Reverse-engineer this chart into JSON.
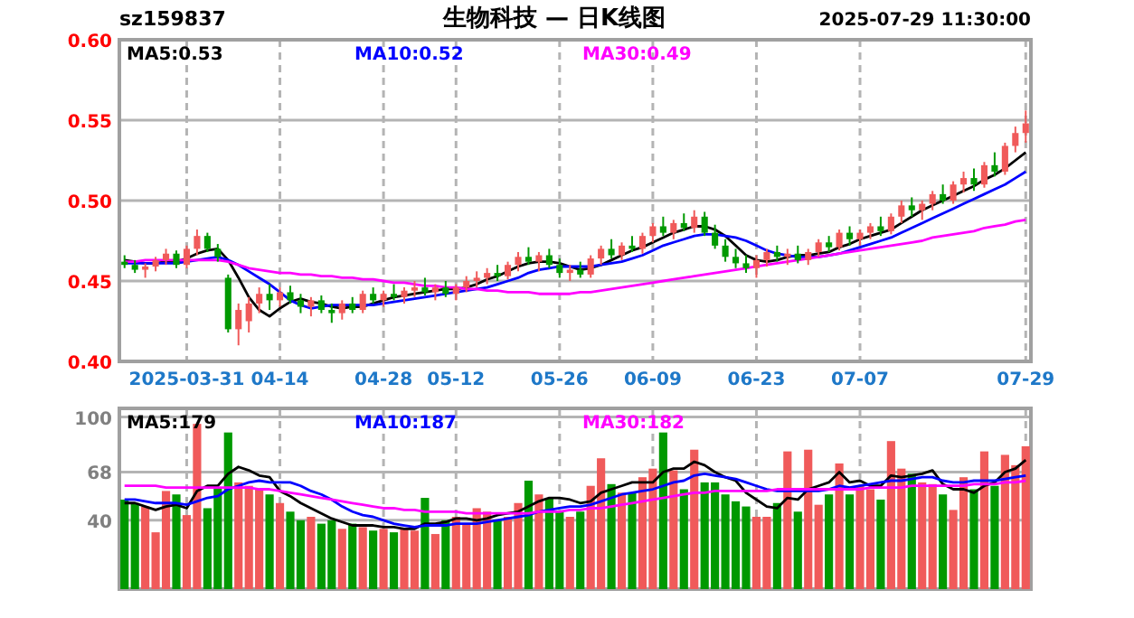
{
  "chart_data": [
    {
      "type": "candlestick",
      "title": "生物科技 — 日K线图",
      "subtitle": "sz159837",
      "annotations": [
        "2025-07-29 11:30:00"
      ],
      "categories": [
        null,
        null,
        null,
        null,
        null,
        null,
        "2025-03-31",
        null,
        null,
        null,
        null,
        null,
        null,
        null,
        null,
        "04-14",
        null,
        null,
        null,
        null,
        null,
        null,
        null,
        null,
        null,
        "04-28",
        null,
        null,
        null,
        null,
        null,
        null,
        "05-12",
        null,
        null,
        null,
        null,
        null,
        null,
        null,
        null,
        null,
        "05-26",
        null,
        null,
        null,
        null,
        null,
        null,
        null,
        null,
        "06-09",
        null,
        null,
        null,
        null,
        null,
        null,
        null,
        null,
        null,
        "06-23",
        null,
        null,
        null,
        null,
        null,
        null,
        null,
        null,
        null,
        "07-07",
        null,
        null,
        null,
        null,
        null,
        null,
        null,
        null,
        null,
        null,
        null,
        null,
        null,
        null,
        null,
        "07-29"
      ],
      "ohlc": [
        [
          0.462,
          0.466,
          0.458,
          0.46
        ],
        [
          0.46,
          0.463,
          0.455,
          0.457
        ],
        [
          0.457,
          0.461,
          0.452,
          0.459
        ],
        [
          0.459,
          0.465,
          0.456,
          0.463
        ],
        [
          0.463,
          0.47,
          0.46,
          0.467
        ],
        [
          0.467,
          0.469,
          0.458,
          0.46
        ],
        [
          0.46,
          0.472,
          0.458,
          0.47
        ],
        [
          0.47,
          0.482,
          0.466,
          0.478
        ],
        [
          0.478,
          0.48,
          0.468,
          0.47
        ],
        [
          0.47,
          0.473,
          0.462,
          0.465
        ],
        [
          0.452,
          0.454,
          0.418,
          0.42
        ],
        [
          0.42,
          0.436,
          0.41,
          0.432
        ],
        [
          0.425,
          0.44,
          0.418,
          0.436
        ],
        [
          0.436,
          0.446,
          0.43,
          0.442
        ],
        [
          0.442,
          0.448,
          0.432,
          0.438
        ],
        [
          0.438,
          0.446,
          0.434,
          0.443
        ],
        [
          0.443,
          0.447,
          0.436,
          0.438
        ],
        [
          0.438,
          0.442,
          0.43,
          0.434
        ],
        [
          0.434,
          0.44,
          0.428,
          0.438
        ],
        [
          0.438,
          0.441,
          0.43,
          0.432
        ],
        [
          0.432,
          0.436,
          0.424,
          0.43
        ],
        [
          0.43,
          0.438,
          0.426,
          0.436
        ],
        [
          0.436,
          0.44,
          0.43,
          0.432
        ],
        [
          0.432,
          0.444,
          0.43,
          0.442
        ],
        [
          0.442,
          0.446,
          0.436,
          0.438
        ],
        [
          0.438,
          0.444,
          0.434,
          0.442
        ],
        [
          0.442,
          0.448,
          0.438,
          0.44
        ],
        [
          0.44,
          0.446,
          0.436,
          0.444
        ],
        [
          0.444,
          0.45,
          0.44,
          0.446
        ],
        [
          0.446,
          0.452,
          0.441,
          0.443
        ],
        [
          0.443,
          0.448,
          0.438,
          0.446
        ],
        [
          0.446,
          0.45,
          0.44,
          0.442
        ],
        [
          0.442,
          0.448,
          0.438,
          0.446
        ],
        [
          0.446,
          0.453,
          0.443,
          0.45
        ],
        [
          0.45,
          0.456,
          0.446,
          0.452
        ],
        [
          0.452,
          0.458,
          0.448,
          0.455
        ],
        [
          0.455,
          0.46,
          0.45,
          0.453
        ],
        [
          0.453,
          0.462,
          0.451,
          0.46
        ],
        [
          0.46,
          0.468,
          0.456,
          0.465
        ],
        [
          0.465,
          0.471,
          0.46,
          0.462
        ],
        [
          0.462,
          0.468,
          0.456,
          0.466
        ],
        [
          0.466,
          0.47,
          0.458,
          0.46
        ],
        [
          0.46,
          0.464,
          0.452,
          0.455
        ],
        [
          0.455,
          0.46,
          0.45,
          0.457
        ],
        [
          0.457,
          0.462,
          0.452,
          0.454
        ],
        [
          0.454,
          0.466,
          0.452,
          0.464
        ],
        [
          0.464,
          0.472,
          0.46,
          0.47
        ],
        [
          0.47,
          0.476,
          0.464,
          0.466
        ],
        [
          0.466,
          0.474,
          0.463,
          0.472
        ],
        [
          0.472,
          0.478,
          0.468,
          0.47
        ],
        [
          0.47,
          0.48,
          0.467,
          0.478
        ],
        [
          0.478,
          0.486,
          0.474,
          0.484
        ],
        [
          0.484,
          0.49,
          0.478,
          0.48
        ],
        [
          0.48,
          0.488,
          0.476,
          0.486
        ],
        [
          0.486,
          0.492,
          0.481,
          0.483
        ],
        [
          0.483,
          0.494,
          0.48,
          0.49
        ],
        [
          0.49,
          0.493,
          0.478,
          0.48
        ],
        [
          0.48,
          0.485,
          0.47,
          0.472
        ],
        [
          0.472,
          0.476,
          0.462,
          0.465
        ],
        [
          0.465,
          0.47,
          0.458,
          0.461
        ],
        [
          0.461,
          0.466,
          0.455,
          0.458
        ],
        [
          0.458,
          0.466,
          0.452,
          0.463
        ],
        [
          0.463,
          0.47,
          0.459,
          0.468
        ],
        [
          0.468,
          0.472,
          0.462,
          0.465
        ],
        [
          0.465,
          0.47,
          0.46,
          0.467
        ],
        [
          0.467,
          0.472,
          0.461,
          0.463
        ],
        [
          0.463,
          0.47,
          0.46,
          0.468
        ],
        [
          0.468,
          0.476,
          0.465,
          0.474
        ],
        [
          0.474,
          0.478,
          0.468,
          0.471
        ],
        [
          0.471,
          0.482,
          0.469,
          0.48
        ],
        [
          0.48,
          0.484,
          0.472,
          0.476
        ],
        [
          0.476,
          0.482,
          0.472,
          0.48
        ],
        [
          0.48,
          0.486,
          0.476,
          0.484
        ],
        [
          0.484,
          0.49,
          0.478,
          0.481
        ],
        [
          0.481,
          0.492,
          0.479,
          0.49
        ],
        [
          0.49,
          0.5,
          0.486,
          0.497
        ],
        [
          0.497,
          0.502,
          0.49,
          0.494
        ],
        [
          0.494,
          0.5,
          0.488,
          0.498
        ],
        [
          0.498,
          0.506,
          0.494,
          0.504
        ],
        [
          0.504,
          0.51,
          0.498,
          0.5
        ],
        [
          0.5,
          0.512,
          0.498,
          0.51
        ],
        [
          0.51,
          0.518,
          0.505,
          0.514
        ],
        [
          0.514,
          0.52,
          0.506,
          0.51
        ],
        [
          0.51,
          0.524,
          0.508,
          0.522
        ],
        [
          0.522,
          0.53,
          0.515,
          0.518
        ],
        [
          0.518,
          0.536,
          0.516,
          0.534
        ],
        [
          0.534,
          0.546,
          0.53,
          0.542
        ],
        [
          0.542,
          0.556,
          0.536,
          0.548
        ]
      ],
      "colors": [
        "#009900",
        "#009900",
        "#f05a5a",
        "#f05a5a",
        "#f05a5a",
        "#009900",
        "#f05a5a",
        "#f05a5a",
        "#009900",
        "#009900",
        "#009900",
        "#f05a5a",
        "#f05a5a",
        "#f05a5a",
        "#009900",
        "#f05a5a",
        "#009900",
        "#009900",
        "#f05a5a",
        "#009900",
        "#009900",
        "#f05a5a",
        "#009900",
        "#f05a5a",
        "#009900",
        "#f05a5a",
        "#009900",
        "#f05a5a",
        "#f05a5a",
        "#009900",
        "#f05a5a",
        "#009900",
        "#f05a5a",
        "#f05a5a",
        "#f05a5a",
        "#f05a5a",
        "#009900",
        "#f05a5a",
        "#f05a5a",
        "#009900",
        "#f05a5a",
        "#009900",
        "#009900",
        "#f05a5a",
        "#009900",
        "#f05a5a",
        "#f05a5a",
        "#009900",
        "#f05a5a",
        "#009900",
        "#f05a5a",
        "#f05a5a",
        "#009900",
        "#f05a5a",
        "#009900",
        "#f05a5a",
        "#009900",
        "#009900",
        "#009900",
        "#009900",
        "#009900",
        "#f05a5a",
        "#f05a5a",
        "#009900",
        "#f05a5a",
        "#009900",
        "#f05a5a",
        "#f05a5a",
        "#009900",
        "#f05a5a",
        "#009900",
        "#f05a5a",
        "#f05a5a",
        "#009900",
        "#f05a5a",
        "#f05a5a",
        "#009900",
        "#f05a5a",
        "#f05a5a",
        "#009900",
        "#f05a5a",
        "#f05a5a",
        "#009900",
        "#f05a5a",
        "#009900",
        "#f05a5a",
        "#f05a5a",
        "#f05a5a"
      ],
      "series": [
        {
          "type": "line",
          "name": "MA5:0.53",
          "color": "#000000",
          "values": [
            0.463,
            0.462,
            0.461,
            0.461,
            0.462,
            0.462,
            0.464,
            0.467,
            0.469,
            0.47,
            0.463,
            0.452,
            0.44,
            0.432,
            0.428,
            0.433,
            0.437,
            0.439,
            0.437,
            0.436,
            0.434,
            0.433,
            0.434,
            0.434,
            0.436,
            0.438,
            0.44,
            0.441,
            0.442,
            0.443,
            0.444,
            0.445,
            0.445,
            0.446,
            0.448,
            0.451,
            0.453,
            0.456,
            0.459,
            0.461,
            0.462,
            0.462,
            0.461,
            0.459,
            0.457,
            0.458,
            0.46,
            0.463,
            0.466,
            0.469,
            0.471,
            0.474,
            0.477,
            0.48,
            0.482,
            0.484,
            0.484,
            0.482,
            0.478,
            0.472,
            0.466,
            0.463,
            0.462,
            0.463,
            0.465,
            0.466,
            0.466,
            0.467,
            0.468,
            0.471,
            0.473,
            0.476,
            0.478,
            0.48,
            0.482,
            0.486,
            0.49,
            0.494,
            0.497,
            0.5,
            0.503,
            0.506,
            0.509,
            0.513,
            0.516,
            0.52,
            0.525,
            0.53
          ]
        },
        {
          "type": "line",
          "name": "MA10:0.52",
          "color": "#0000ff",
          "values": [
            0.461,
            0.461,
            0.461,
            0.461,
            0.461,
            0.461,
            0.462,
            0.463,
            0.464,
            0.465,
            0.463,
            0.46,
            0.456,
            0.452,
            0.448,
            0.443,
            0.438,
            0.435,
            0.433,
            0.434,
            0.435,
            0.435,
            0.435,
            0.435,
            0.435,
            0.436,
            0.437,
            0.438,
            0.439,
            0.44,
            0.441,
            0.442,
            0.443,
            0.444,
            0.445,
            0.446,
            0.448,
            0.45,
            0.452,
            0.455,
            0.457,
            0.458,
            0.459,
            0.459,
            0.459,
            0.459,
            0.46,
            0.461,
            0.462,
            0.464,
            0.466,
            0.469,
            0.472,
            0.474,
            0.476,
            0.478,
            0.479,
            0.479,
            0.478,
            0.477,
            0.475,
            0.472,
            0.469,
            0.467,
            0.466,
            0.465,
            0.465,
            0.465,
            0.466,
            0.467,
            0.469,
            0.471,
            0.473,
            0.475,
            0.477,
            0.48,
            0.483,
            0.486,
            0.489,
            0.492,
            0.495,
            0.498,
            0.501,
            0.504,
            0.507,
            0.51,
            0.514,
            0.518
          ]
        },
        {
          "type": "line",
          "name": "MA30:0.49",
          "color": "#ff00ff",
          "values": [
            0.462,
            0.462,
            0.463,
            0.463,
            0.463,
            0.463,
            0.463,
            0.463,
            0.463,
            0.463,
            0.462,
            0.46,
            0.458,
            0.457,
            0.456,
            0.455,
            0.455,
            0.454,
            0.454,
            0.453,
            0.453,
            0.452,
            0.452,
            0.451,
            0.451,
            0.45,
            0.449,
            0.449,
            0.448,
            0.447,
            0.447,
            0.446,
            0.446,
            0.445,
            0.445,
            0.444,
            0.444,
            0.443,
            0.443,
            0.443,
            0.442,
            0.442,
            0.442,
            0.442,
            0.443,
            0.443,
            0.444,
            0.445,
            0.446,
            0.447,
            0.448,
            0.449,
            0.45,
            0.451,
            0.452,
            0.453,
            0.454,
            0.455,
            0.456,
            0.457,
            0.458,
            0.459,
            0.46,
            0.461,
            0.462,
            0.463,
            0.464,
            0.465,
            0.466,
            0.467,
            0.468,
            0.469,
            0.47,
            0.471,
            0.472,
            0.473,
            0.474,
            0.475,
            0.477,
            0.478,
            0.479,
            0.48,
            0.481,
            0.483,
            0.484,
            0.485,
            0.487,
            0.488
          ]
        }
      ],
      "ylim": [
        0.4,
        0.6
      ],
      "yticks": [
        {
          "value": 0.6,
          "label": "0.60"
        },
        {
          "value": 0.55,
          "label": "0.55"
        },
        {
          "value": 0.5,
          "label": "0.50"
        },
        {
          "value": 0.45,
          "label": "0.45"
        },
        {
          "value": 0.4,
          "label": "0.40"
        }
      ],
      "grid": true
    },
    {
      "type": "bar",
      "tick_labels": "y",
      "categories": [
        null,
        null,
        null,
        null,
        null,
        null,
        null,
        null,
        null,
        null,
        null,
        null,
        null,
        null,
        null,
        null,
        null,
        null,
        null,
        null,
        null,
        null,
        null,
        null,
        null,
        null,
        null,
        null,
        null,
        null,
        null,
        null,
        null,
        null,
        null,
        null,
        null,
        null,
        null,
        null,
        null,
        null,
        null,
        null,
        null,
        null,
        null,
        null,
        null,
        null,
        null,
        null,
        null,
        null,
        null,
        null,
        null,
        null,
        null,
        null,
        null,
        null,
        null,
        null,
        null,
        null,
        null,
        null,
        null,
        null,
        null,
        null,
        null,
        null,
        null,
        null,
        null,
        null,
        null,
        null,
        null,
        null,
        null,
        null,
        null,
        null,
        null,
        null
      ],
      "series": [
        {
          "type": "bar",
          "values": [
            52,
            50,
            48,
            33,
            57,
            55,
            43,
            96,
            47,
            59,
            91,
            62,
            60,
            58,
            55,
            50,
            45,
            40,
            42,
            38,
            40,
            35,
            38,
            36,
            34,
            35,
            33,
            35,
            34,
            53,
            32,
            40,
            42,
            38,
            47,
            45,
            40,
            42,
            50,
            63,
            55,
            53,
            45,
            42,
            45,
            60,
            76,
            61,
            56,
            56,
            65,
            70,
            91,
            69,
            58,
            81,
            62,
            62,
            55,
            51,
            48,
            42,
            42,
            50,
            80,
            45,
            81,
            49,
            55,
            73,
            55,
            60,
            58,
            52,
            86,
            70,
            67,
            62,
            61,
            55,
            46,
            65,
            58,
            80,
            60,
            78,
            72,
            83
          ],
          "colors": [
            "#009900",
            "#009900",
            "#f05a5a",
            "#f05a5a",
            "#f05a5a",
            "#009900",
            "#f05a5a",
            "#f05a5a",
            "#009900",
            "#009900",
            "#009900",
            "#f05a5a",
            "#f05a5a",
            "#f05a5a",
            "#009900",
            "#f05a5a",
            "#009900",
            "#009900",
            "#f05a5a",
            "#009900",
            "#009900",
            "#f05a5a",
            "#009900",
            "#f05a5a",
            "#009900",
            "#f05a5a",
            "#009900",
            "#f05a5a",
            "#f05a5a",
            "#009900",
            "#f05a5a",
            "#009900",
            "#f05a5a",
            "#f05a5a",
            "#f05a5a",
            "#f05a5a",
            "#009900",
            "#f05a5a",
            "#f05a5a",
            "#009900",
            "#f05a5a",
            "#009900",
            "#009900",
            "#f05a5a",
            "#009900",
            "#f05a5a",
            "#f05a5a",
            "#009900",
            "#f05a5a",
            "#009900",
            "#f05a5a",
            "#f05a5a",
            "#009900",
            "#f05a5a",
            "#009900",
            "#f05a5a",
            "#009900",
            "#009900",
            "#009900",
            "#009900",
            "#009900",
            "#f05a5a",
            "#f05a5a",
            "#009900",
            "#f05a5a",
            "#009900",
            "#f05a5a",
            "#f05a5a",
            "#009900",
            "#f05a5a",
            "#009900",
            "#f05a5a",
            "#f05a5a",
            "#009900",
            "#f05a5a",
            "#f05a5a",
            "#009900",
            "#f05a5a",
            "#f05a5a",
            "#009900",
            "#f05a5a",
            "#f05a5a",
            "#009900",
            "#f05a5a",
            "#009900",
            "#f05a5a",
            "#f05a5a",
            "#f05a5a"
          ]
        },
        {
          "type": "line",
          "name": "MA5:179",
          "color": "#000000",
          "values": [
            50,
            50,
            48,
            46,
            48,
            49,
            47,
            57,
            60,
            60,
            67,
            71,
            69,
            66,
            65,
            57,
            54,
            50,
            47,
            44,
            41,
            39,
            37,
            37,
            37,
            36,
            36,
            35,
            35,
            38,
            38,
            39,
            41,
            41,
            40,
            41,
            43,
            44,
            45,
            48,
            51,
            53,
            53,
            52,
            50,
            51,
            56,
            58,
            60,
            62,
            62,
            62,
            68,
            70,
            70,
            74,
            72,
            68,
            65,
            63,
            56,
            52,
            48,
            47,
            53,
            52,
            58,
            60,
            62,
            68,
            62,
            63,
            60,
            60,
            66,
            65,
            66,
            67,
            69,
            61,
            58,
            58,
            56,
            60,
            62,
            68,
            70,
            75
          ]
        },
        {
          "type": "line",
          "name": "MA10:187",
          "color": "#0000ff",
          "values": [
            52,
            52,
            51,
            50,
            50,
            50,
            49,
            51,
            53,
            54,
            58,
            60,
            62,
            63,
            62,
            62,
            62,
            60,
            57,
            55,
            52,
            48,
            45,
            43,
            42,
            40,
            38,
            37,
            36,
            37,
            37,
            37,
            38,
            38,
            38,
            39,
            40,
            41,
            42,
            43,
            45,
            46,
            47,
            48,
            48,
            49,
            51,
            53,
            55,
            56,
            57,
            58,
            60,
            62,
            63,
            66,
            67,
            66,
            65,
            64,
            62,
            60,
            58,
            57,
            57,
            57,
            57,
            57,
            58,
            60,
            59,
            60,
            61,
            62,
            63,
            63,
            64,
            65,
            65,
            63,
            62,
            62,
            63,
            63,
            63,
            64,
            65,
            66
          ]
        },
        {
          "type": "line",
          "name": "MA30:182",
          "color": "#ff00ff",
          "values": [
            60,
            60,
            60,
            60,
            59,
            59,
            59,
            59,
            59,
            59,
            59,
            59,
            59,
            58,
            58,
            57,
            56,
            55,
            54,
            53,
            52,
            51,
            50,
            49,
            48,
            47,
            47,
            46,
            46,
            45,
            45,
            45,
            45,
            44,
            44,
            44,
            44,
            44,
            44,
            44,
            45,
            45,
            45,
            46,
            46,
            47,
            47,
            48,
            49,
            50,
            51,
            52,
            53,
            54,
            55,
            56,
            56,
            57,
            57,
            57,
            57,
            57,
            57,
            58,
            58,
            58,
            58,
            58,
            58,
            58,
            58,
            58,
            59,
            59,
            59,
            59,
            60,
            60,
            60,
            60,
            60,
            60,
            61,
            61,
            61,
            62,
            62,
            63
          ]
        }
      ],
      "ylim": [
        0,
        105
      ],
      "yticks": [
        100,
        68,
        40
      ],
      "grid": true
    }
  ]
}
